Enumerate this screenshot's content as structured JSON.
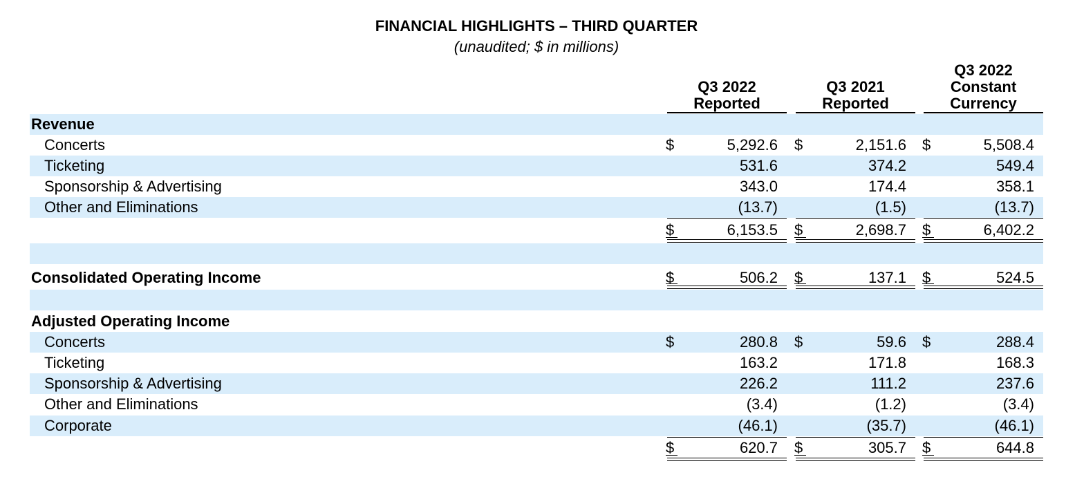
{
  "header": {
    "title": "FINANCIAL HIGHLIGHTS – THIRD QUARTER",
    "subtitle": "(unaudited; $ in millions)"
  },
  "columns": [
    {
      "line1": "Q3 2022",
      "line2": "Reported"
    },
    {
      "line1": "Q3 2021",
      "line2": "Reported"
    },
    {
      "line1": "Q3 2022",
      "line2": "Constant",
      "line3": "Currency"
    }
  ],
  "currency_symbol": "$",
  "revenue": {
    "heading": "Revenue",
    "rows": [
      {
        "label": "Concerts",
        "values": [
          "5,292.6",
          "2,151.6",
          "5,508.4"
        ]
      },
      {
        "label": "Ticketing",
        "values": [
          "531.6",
          "374.2",
          "549.4"
        ]
      },
      {
        "label": "Sponsorship & Advertising",
        "values": [
          "343.0",
          "174.4",
          "358.1"
        ]
      },
      {
        "label": "Other and Eliminations",
        "values": [
          "(13.7)",
          "(1.5)",
          "(13.7)"
        ]
      }
    ],
    "total": [
      "6,153.5",
      "2,698.7",
      "6,402.2"
    ]
  },
  "operating_income": {
    "label": "Consolidated Operating Income",
    "values": [
      "506.2",
      "137.1",
      "524.5"
    ]
  },
  "adjusted_operating_income": {
    "heading": "Adjusted Operating Income",
    "rows": [
      {
        "label": "Concerts",
        "values": [
          "280.8",
          "59.6",
          "288.4"
        ]
      },
      {
        "label": "Ticketing",
        "values": [
          "163.2",
          "171.8",
          "168.3"
        ]
      },
      {
        "label": "Sponsorship & Advertising",
        "values": [
          "226.2",
          "111.2",
          "237.6"
        ]
      },
      {
        "label": "Other and Eliminations",
        "values": [
          "(3.4)",
          "(1.2)",
          "(3.4)"
        ]
      },
      {
        "label": "Corporate",
        "values": [
          "(46.1)",
          "(35.7)",
          "(46.1)"
        ]
      }
    ],
    "total": [
      "620.7",
      "305.7",
      "644.8"
    ]
  },
  "colors": {
    "row_shading": "#d9edfb"
  }
}
